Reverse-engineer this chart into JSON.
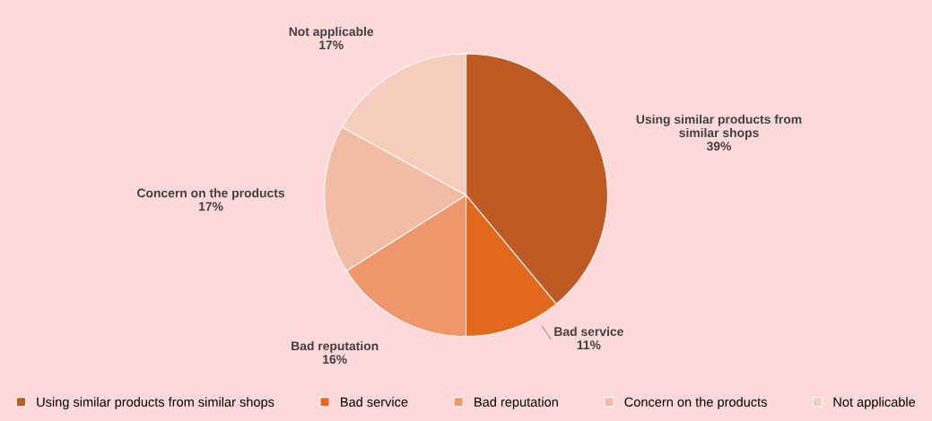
{
  "chart_data": {
    "type": "pie",
    "categories": [
      "Using similar products from similar shops",
      "Bad service",
      "Bad reputation",
      "Concern on the products",
      "Not applicable"
    ],
    "values": [
      39,
      11,
      16,
      17,
      17
    ],
    "colors": [
      "#c05a24",
      "#e2691c",
      "#f0966c",
      "#f2bba4",
      "#f6cdbd"
    ],
    "value_labels": [
      "39%",
      "11%",
      "16%",
      "17%",
      "17%"
    ],
    "legend": "bottom"
  }
}
